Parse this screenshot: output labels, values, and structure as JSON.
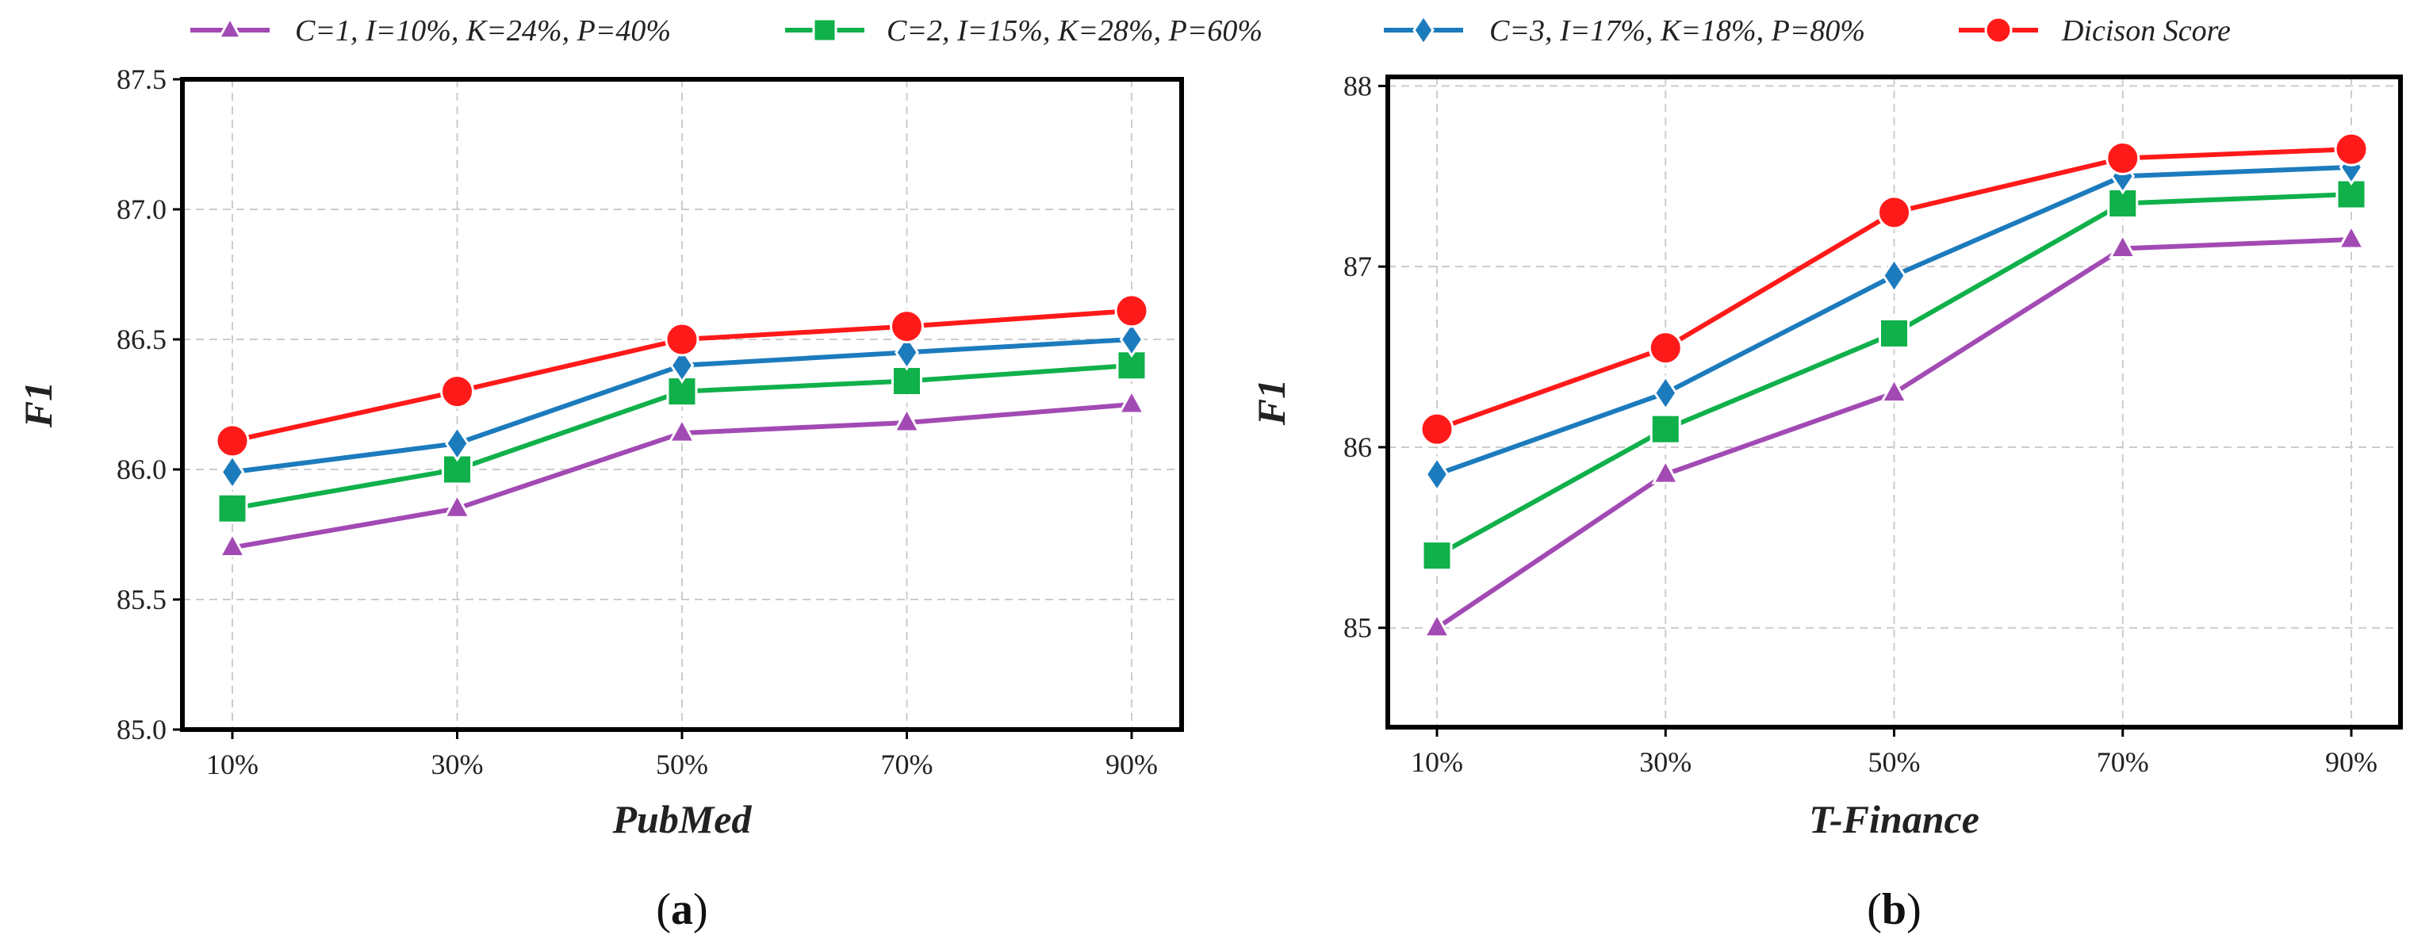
{
  "chart_data": {
    "type": "line",
    "legend": {
      "placement": "top",
      "entries": [
        {
          "name": "C=1, I=10%, K=24%, P=40%",
          "color": "#a24ab4",
          "marker": "triangle-icon"
        },
        {
          "name": "C=2, I=15%, K=28%, P=60%",
          "color": "#10b04a",
          "marker": "square-icon"
        },
        {
          "name": "C=3, I=17%, K=18%, P=80%",
          "color": "#1c7bbd",
          "marker": "diamond-icon"
        },
        {
          "name": "Dicison Score",
          "color": "#ff1a1a",
          "marker": "circle-icon"
        }
      ]
    },
    "panels": [
      {
        "id": "a",
        "panel_label": "(a)",
        "xlabel": "PubMed",
        "ylabel": "F1",
        "categories": [
          "10%",
          "30%",
          "50%",
          "70%",
          "90%"
        ],
        "ylim": [
          85.0,
          87.5
        ],
        "yticks": [
          85.0,
          85.5,
          86.0,
          86.5,
          87.0,
          87.5
        ],
        "ytick_labels": [
          "85.0",
          "85.5",
          "86.0",
          "86.5",
          "87.0",
          "87.5"
        ],
        "grid": true,
        "series": [
          {
            "name": "C=1, I=10%, K=24%, P=40%",
            "values": [
              85.7,
              85.85,
              86.14,
              86.18,
              86.25
            ]
          },
          {
            "name": "C=2, I=15%, K=28%, P=60%",
            "values": [
              85.85,
              86.0,
              86.3,
              86.34,
              86.4
            ]
          },
          {
            "name": "C=3, I=17%, K=18%, P=80%",
            "values": [
              85.99,
              86.1,
              86.4,
              86.45,
              86.5
            ]
          },
          {
            "name": "Dicison Score",
            "values": [
              86.11,
              86.3,
              86.5,
              86.55,
              86.61
            ]
          }
        ]
      },
      {
        "id": "b",
        "panel_label": "(b)",
        "xlabel": "T-Finance",
        "ylabel": "F1",
        "categories": [
          "10%",
          "30%",
          "50%",
          "70%",
          "90%"
        ],
        "ylim": [
          84.45,
          88.05
        ],
        "yticks": [
          85,
          86,
          87,
          88
        ],
        "ytick_labels": [
          "85",
          "86",
          "87",
          "88"
        ],
        "grid": true,
        "series": [
          {
            "name": "C=1, I=10%, K=24%, P=40%",
            "values": [
              85.0,
              85.85,
              86.3,
              87.1,
              87.15
            ]
          },
          {
            "name": "C=2, I=15%, K=28%, P=60%",
            "values": [
              85.4,
              86.1,
              86.63,
              87.35,
              87.4
            ]
          },
          {
            "name": "C=3, I=17%, K=18%, P=80%",
            "values": [
              85.85,
              86.3,
              86.95,
              87.5,
              87.55
            ]
          },
          {
            "name": "Dicison Score",
            "values": [
              86.1,
              86.55,
              87.3,
              87.6,
              87.65
            ]
          }
        ]
      }
    ]
  }
}
